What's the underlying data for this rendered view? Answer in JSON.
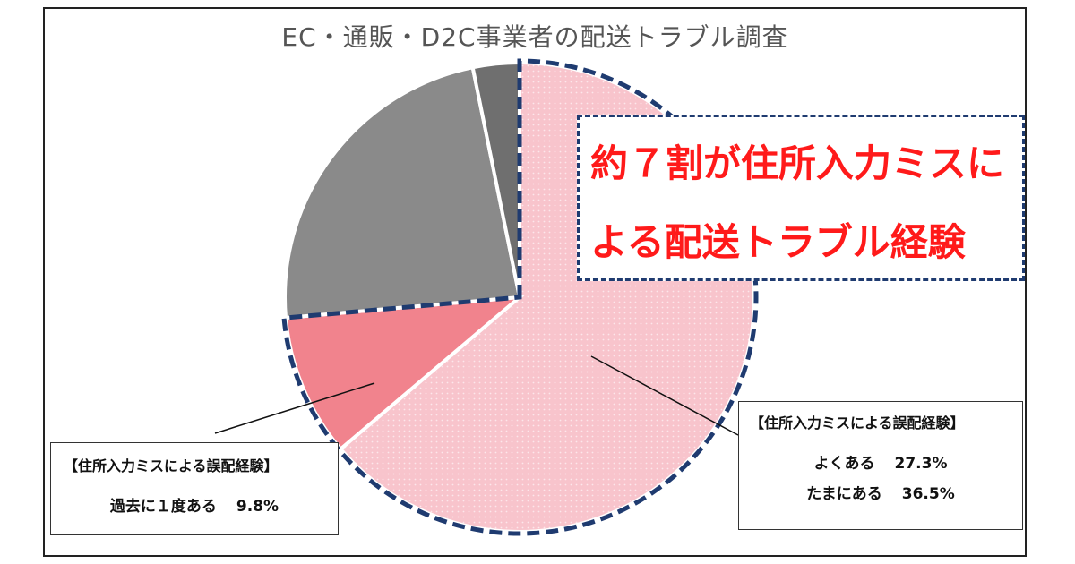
{
  "colors": {
    "often": "#f8c4cc",
    "sometimes": "#f7a8b2",
    "once": "#f1838d",
    "never": "#8a8a8a",
    "other": "#6f6f6f",
    "dash": "#1f3b70",
    "callout_text": "#ff1a1a"
  },
  "chart_data": {
    "type": "pie",
    "title": "EC・通販・D2C事業者の配送トラブル調査",
    "slices": [
      {
        "label": "よくある＋たまにある",
        "value": 63.8,
        "color": "#f8c4cc"
      },
      {
        "label": "過去に１度ある",
        "value": 9.8,
        "color": "#f1838d"
      },
      {
        "label": "",
        "value": 23.2,
        "color": "#8a8a8a"
      },
      {
        "label": "",
        "value": 3.2,
        "color": "#6f6f6f"
      }
    ]
  },
  "callout": {
    "line1": "約７割が住所入力ミスに",
    "line2": "よる配送トラブル経験"
  },
  "label_left": {
    "heading": "【住所入力ミスによる誤配経験】",
    "row_label": "過去に１度ある",
    "row_value": "9.8%"
  },
  "label_right": {
    "heading": "【住所入力ミスによる誤配経験】",
    "rows": [
      {
        "label": "よくある",
        "value": "27.3%"
      },
      {
        "label": "たまにある",
        "value": "36.5%"
      }
    ]
  }
}
